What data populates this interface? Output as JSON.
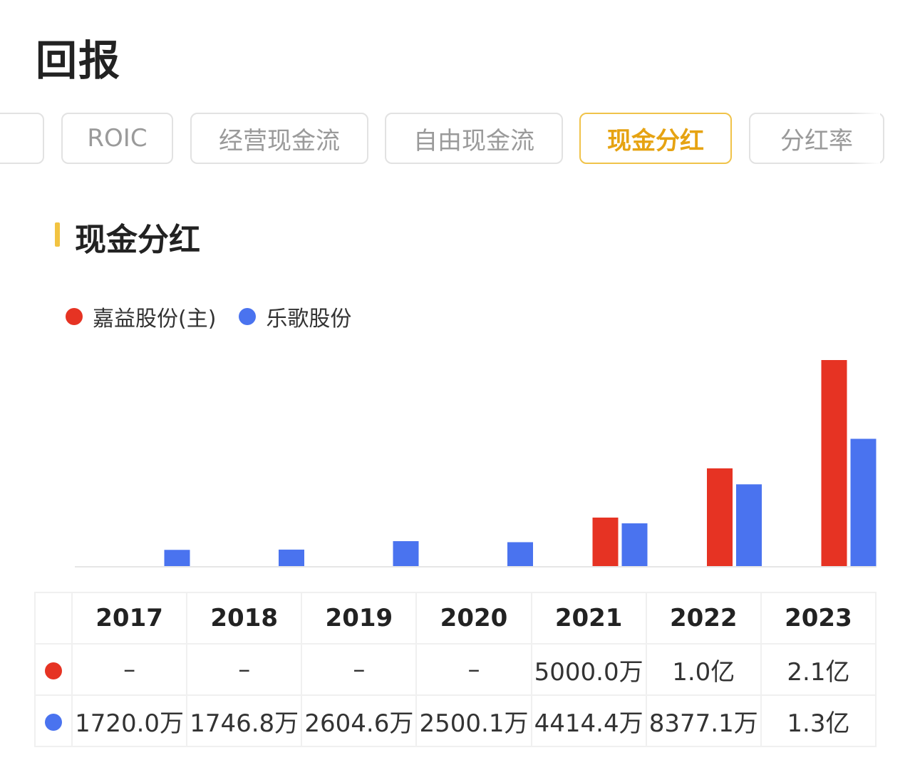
{
  "page": {
    "title": "回报"
  },
  "tabs": [
    {
      "label": "",
      "active": false
    },
    {
      "label": "ROIC",
      "active": false
    },
    {
      "label": "经营现金流",
      "active": false
    },
    {
      "label": "自由现金流",
      "active": false
    },
    {
      "label": "现金分红",
      "active": true
    },
    {
      "label": "分红率",
      "active": false
    }
  ],
  "section": {
    "title": "现金分红"
  },
  "colors": {
    "series_a": "#e63323",
    "series_b": "#4a73ef",
    "accent": "#f2c341"
  },
  "chart_data": {
    "type": "bar",
    "categories": [
      "2017",
      "2018",
      "2019",
      "2020",
      "2021",
      "2022",
      "2023"
    ],
    "series": [
      {
        "name": "嘉益股份(主)",
        "color": "#e63323",
        "values": [
          null,
          null,
          null,
          null,
          50000000,
          100000000,
          210000000
        ]
      },
      {
        "name": "乐歌股份",
        "color": "#4a73ef",
        "values": [
          17200000,
          17468000,
          26046000,
          25001000,
          44144000,
          83771000,
          130000000
        ]
      }
    ],
    "grid": false,
    "legend_position": "top-left"
  },
  "table": {
    "years": [
      "2017",
      "2018",
      "2019",
      "2020",
      "2021",
      "2022",
      "2023"
    ],
    "rows": [
      {
        "series": "嘉益股份(主)",
        "color": "#e63323",
        "cells": [
          "–",
          "–",
          "–",
          "–",
          "5000.0万",
          "1.0亿",
          "2.1亿"
        ]
      },
      {
        "series": "乐歌股份",
        "color": "#4a73ef",
        "cells": [
          "1720.0万",
          "1746.8万",
          "2604.6万",
          "2500.1万",
          "4414.4万",
          "8377.1万",
          "1.3亿"
        ]
      }
    ]
  }
}
